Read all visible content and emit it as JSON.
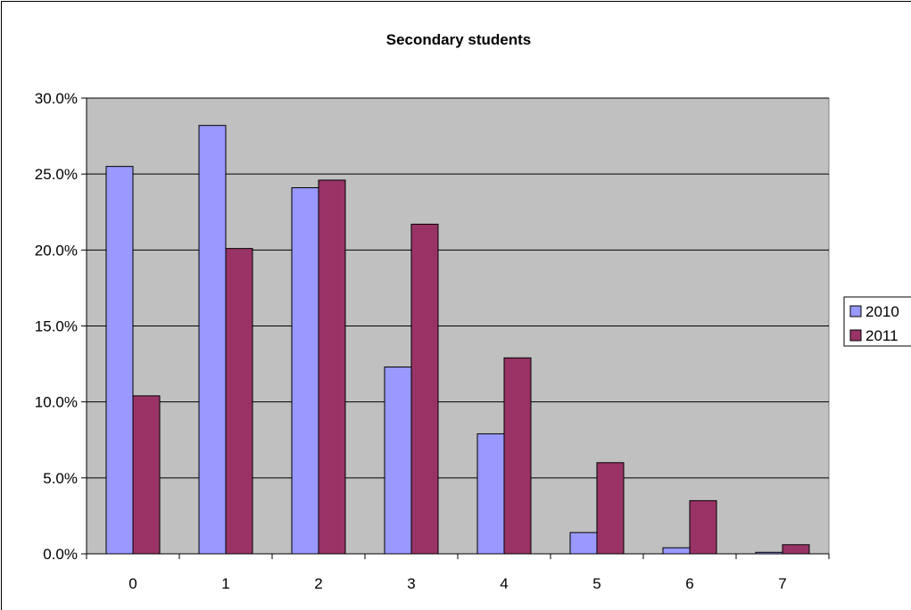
{
  "chart_data": {
    "type": "bar",
    "title": "Secondary students",
    "xlabel": "",
    "ylabel": "",
    "categories": [
      "0",
      "1",
      "2",
      "3",
      "4",
      "5",
      "6",
      "7"
    ],
    "series": [
      {
        "name": "2010",
        "color": "#9999ff",
        "values": [
          25.5,
          28.2,
          24.1,
          12.3,
          7.9,
          1.4,
          0.4,
          0.1
        ]
      },
      {
        "name": "2011",
        "color": "#993366",
        "values": [
          10.4,
          20.1,
          24.6,
          21.7,
          12.9,
          6.0,
          3.5,
          0.6
        ]
      }
    ],
    "ylim": [
      0,
      30
    ],
    "y_ticks": [
      "0.0%",
      "5.0%",
      "10.0%",
      "15.0%",
      "20.0%",
      "25.0%",
      "30.0%"
    ],
    "y_tick_values": [
      0,
      5,
      10,
      15,
      20,
      25,
      30
    ],
    "grid": true,
    "plot_background": "#c0c0c0",
    "legend_position": "right"
  }
}
